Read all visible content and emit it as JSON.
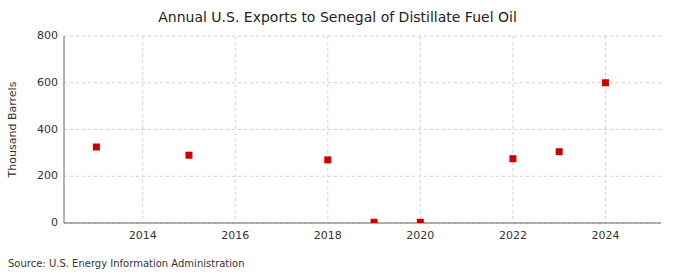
{
  "chart_data": {
    "type": "scatter",
    "title": "Annual U.S. Exports to Senegal of Distillate Fuel Oil",
    "ylabel": "Thousand Barrels",
    "source": "Source: U.S. Energy Information Administration",
    "x": [
      2013,
      2015,
      2018,
      2019,
      2020,
      2022,
      2023,
      2024
    ],
    "values": [
      325,
      290,
      270,
      3,
      3,
      275,
      305,
      600
    ],
    "color": "#cc0000",
    "marker": "square",
    "xlim": [
      2012.3,
      2025.2
    ],
    "ylim": [
      0,
      800
    ],
    "xticks": [
      2014,
      2016,
      2018,
      2020,
      2022,
      2024
    ],
    "yticks": [
      0,
      200,
      400,
      600,
      800
    ],
    "grid": true
  }
}
